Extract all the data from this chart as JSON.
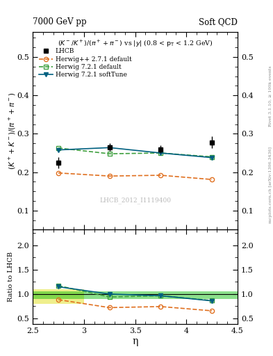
{
  "title_left": "7000 GeV pp",
  "title_right": "Soft QCD",
  "subtitle": "(K⁻/K⁺)/(π⁺+π⁻) vs |y| (0.8 < p_T < 1.2 GeV)",
  "watermark": "LHCB_2012_I1119400",
  "ylabel_main": "(K⁺ + K⁻)/(pi⁺ + pi⁻)",
  "ylabel_ratio": "Ratio to LHCB",
  "xlabel": "η",
  "right_label_top": "Rivet 3.1.10, ≥ 100k events",
  "right_label_bot": "mcplots.cern.ch [arXiv:1306.3436]",
  "xlim": [
    2.5,
    4.5
  ],
  "ylim_main": [
    0.05,
    0.565
  ],
  "ylim_ratio": [
    0.38,
    2.32
  ],
  "yticks_main": [
    0.1,
    0.2,
    0.3,
    0.4,
    0.5
  ],
  "yticks_ratio": [
    0.5,
    1.0,
    1.5,
    2.0
  ],
  "xticks": [
    2.5,
    3.0,
    3.5,
    4.0,
    4.5
  ],
  "eta_lhcb": [
    2.75,
    3.25,
    3.75,
    4.25
  ],
  "val_lhcb": [
    0.225,
    0.265,
    0.26,
    0.278
  ],
  "err_lhcb": [
    0.015,
    0.01,
    0.01,
    0.015
  ],
  "eta_herwig_pp": [
    2.75,
    3.25,
    3.75,
    4.25
  ],
  "val_herwig_pp": [
    0.198,
    0.19,
    0.192,
    0.181
  ],
  "eta_herwig721_def": [
    2.75,
    3.25,
    3.75,
    4.25
  ],
  "val_herwig721_def": [
    0.263,
    0.248,
    0.25,
    0.24
  ],
  "eta_herwig721_soft": [
    2.75,
    3.25,
    3.75,
    4.25
  ],
  "val_herwig721_soft": [
    0.258,
    0.264,
    0.25,
    0.238
  ],
  "color_lhcb": "#000000",
  "color_herwig_pp": "#e07020",
  "color_herwig721_def": "#40a040",
  "color_herwig721_soft": "#006080",
  "band_yellow_xmin": 2.5,
  "band_yellow_xmax": 3.0,
  "band_yellow_ymin": 0.8,
  "band_yellow_ymax": 1.1,
  "band_green_xmin": 2.5,
  "band_green_xmax": 4.5,
  "band_green_ymin": 0.9,
  "band_green_ymax": 1.05,
  "band_yellow_color": "#dddd00",
  "band_green_color": "#00bb00",
  "band_alpha_yellow": 0.45,
  "band_alpha_green": 0.45
}
